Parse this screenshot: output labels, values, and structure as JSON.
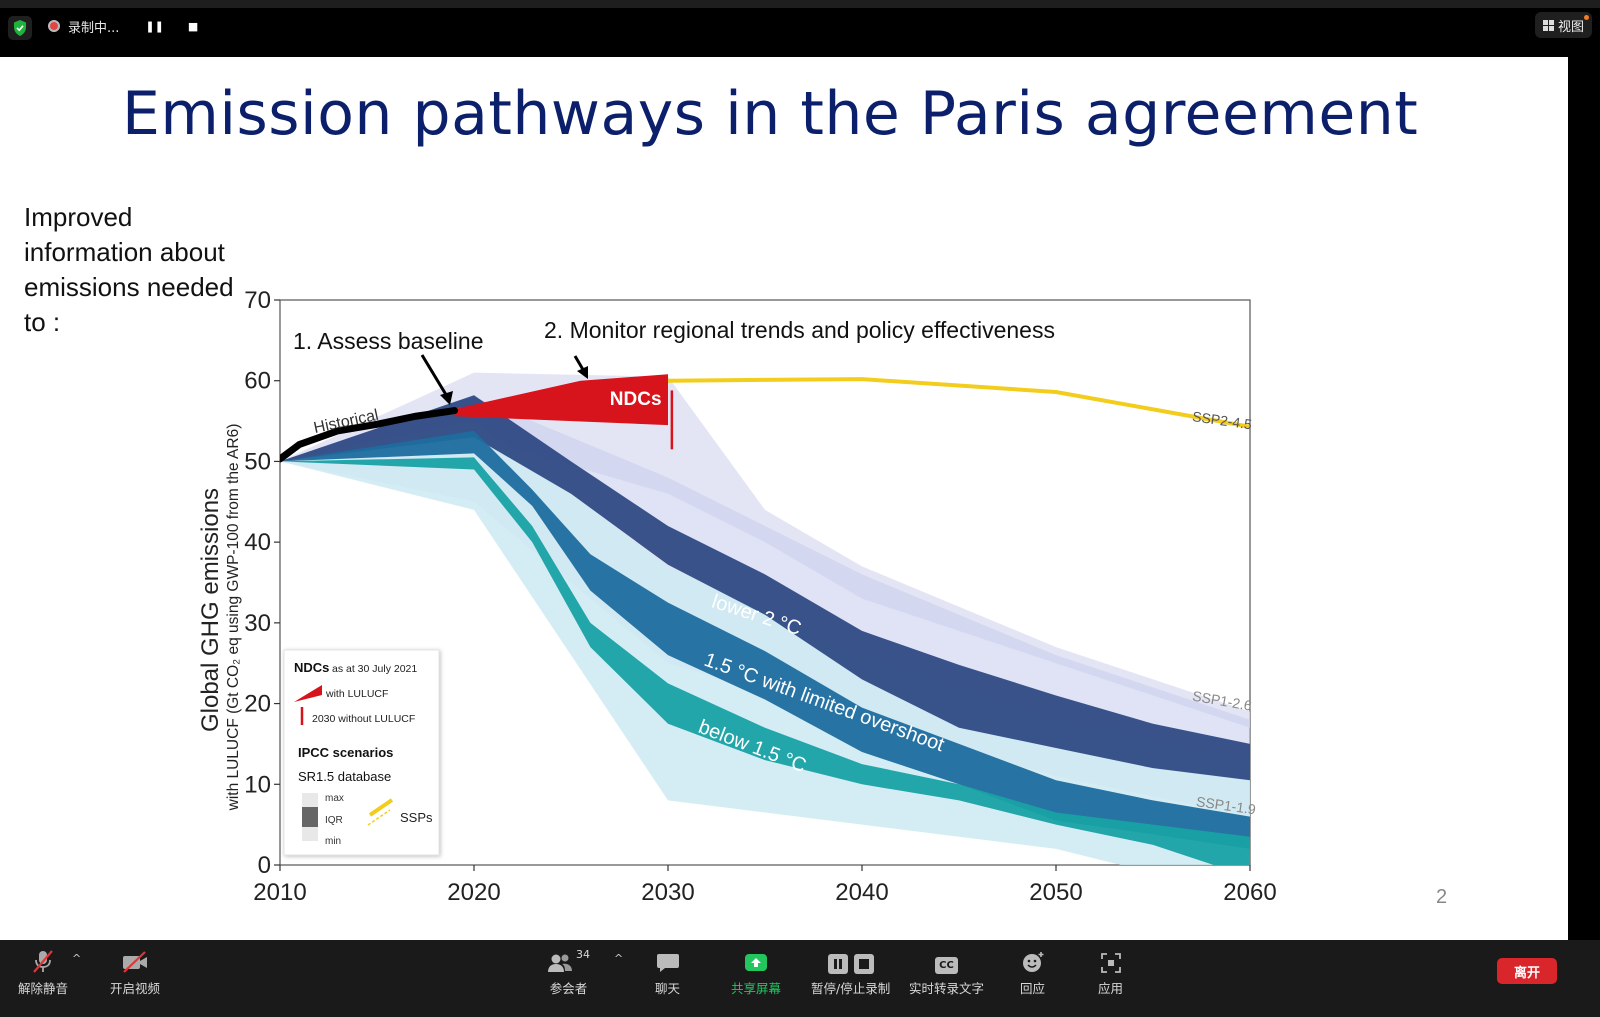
{
  "topbar": {
    "recording_label": "录制中...",
    "pause_glyph": "❚❚",
    "stop_glyph": "■",
    "view_label": "视图"
  },
  "slide": {
    "title": "Emission pathways in the Paris agreement",
    "side_note": "Improved information about emissions needed to :",
    "page_number": "2"
  },
  "chart_data": {
    "type": "area",
    "ylabel_main": "Global GHG emissions",
    "ylabel_sub": "with LULUCF (Gt CO₂ eq using GWP-100 from the AR6)",
    "xlim": [
      2010,
      2060
    ],
    "ylim": [
      0,
      70
    ],
    "x_ticks": [
      "2010",
      "2020",
      "2030",
      "2040",
      "2050",
      "2060"
    ],
    "y_ticks": [
      "0",
      "10",
      "20",
      "30",
      "40",
      "50",
      "60",
      "70"
    ],
    "annotations": {
      "assess": "1. Assess baseline",
      "monitor": "2. Monitor regional trends and policy effectiveness",
      "historical": "Historical",
      "ndcs": "NDCs",
      "lower2": "lower 2 °C",
      "onefive": "1.5 °C with limited overshoot",
      "below": "below 1.5 °C",
      "ssp245": "SSP2-4.5",
      "ssp126": "SSP1-2.6",
      "ssp119": "SSP1-1.9"
    },
    "series": [
      {
        "name": "Historical",
        "x": [
          2010,
          2011,
          2013,
          2015,
          2017,
          2019
        ],
        "y": [
          50.3,
          52.1,
          53.8,
          54.6,
          55.6,
          56.3
        ]
      },
      {
        "name": "SSP2-4.5",
        "x": [
          2019,
          2030,
          2040,
          2050,
          2060
        ],
        "y": [
          56.3,
          60,
          60.2,
          58.6,
          54.3
        ]
      },
      {
        "name": "lower 2 °C",
        "x": [
          2010,
          2020,
          2025,
          2030,
          2035,
          2040,
          2045,
          2050,
          2055,
          2060
        ],
        "upper": [
          50,
          58.2,
          50,
          42,
          36,
          29,
          24.8,
          21,
          17.5,
          15
        ],
        "lower": [
          50,
          53,
          46,
          37.2,
          31,
          23,
          17,
          14.5,
          12,
          10.5
        ]
      },
      {
        "name": "1.5 °C with limited overshoot",
        "x": [
          2010,
          2020,
          2023,
          2026,
          2030,
          2035,
          2040,
          2045,
          2050,
          2055,
          2060
        ],
        "upper": [
          50,
          53.8,
          46.5,
          38.5,
          32.5,
          26.5,
          19.5,
          15,
          10.5,
          8,
          6
        ],
        "lower": [
          50,
          51,
          44.5,
          34,
          26,
          20.5,
          14,
          10,
          5.5,
          3.8,
          2
        ]
      },
      {
        "name": "below 1.5 °C",
        "x": [
          2010,
          2020,
          2023,
          2026,
          2030,
          2035,
          2040,
          2045,
          2050,
          2055,
          2060
        ],
        "upper": [
          50,
          50.5,
          42,
          30,
          22.5,
          17,
          12.5,
          10,
          6.5,
          5,
          3.5
        ],
        "lower": [
          50,
          49,
          40,
          27,
          17.5,
          13,
          10,
          8,
          5,
          2.5,
          -1.5
        ]
      }
    ],
    "ndc_range_2030": {
      "with_luluf_upper": 60.8,
      "with_luluf_lower": 54.5,
      "without_luluf_top": 58.8,
      "without_luluf_bottom": 51.5
    },
    "legend": {
      "ndcs_title": "NDCs",
      "ndcs_date": "as at 30 July 2021",
      "with_luluf": "with LULUCF",
      "without_luluf": "2030 without LULUCF",
      "ipcc_title": "IPCC scenarios",
      "sr15": "SR1.5 database",
      "max": "max",
      "iqr": "IQR",
      "min": "min",
      "ssps": "SSPs"
    },
    "colors": {
      "lower2": "#2f4a84",
      "onefive": "#1d6d9e",
      "below": "#18a2a4",
      "ssp245": "#f2cd1c",
      "ndc": "#d7141b",
      "historical": "#000000"
    }
  },
  "toolbar": {
    "unmute": "解除静音",
    "start_video": "开启视频",
    "participants": "参会者",
    "participant_count": "34",
    "chat": "聊天",
    "share": "共享屏幕",
    "record": "暂停/停止录制",
    "captions": "实时转录文字",
    "captions_icon": "CC",
    "reactions": "回应",
    "apps": "应用",
    "leave": "离开",
    "caret": "^"
  }
}
